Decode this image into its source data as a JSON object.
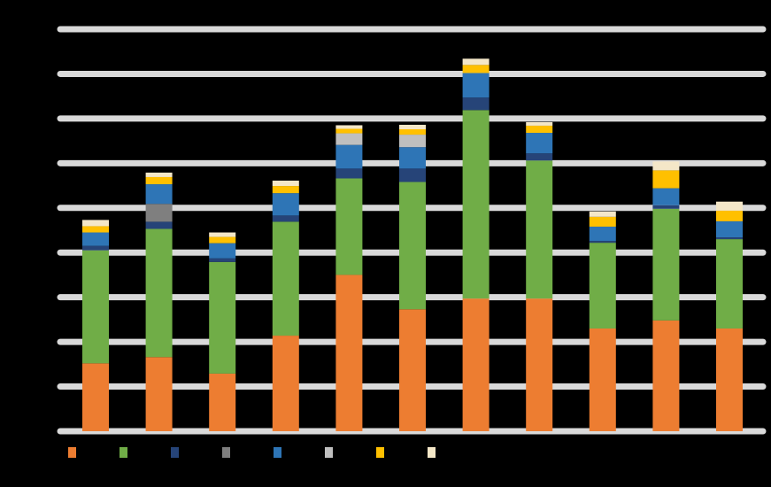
{
  "chart_data": {
    "type": "stacked_bar",
    "ylim": [
      0,
      9
    ],
    "yticks": [
      0,
      1,
      2,
      3,
      4,
      5,
      6,
      7,
      8,
      9
    ],
    "grid": true,
    "series": [
      {
        "color": "#ed7d31",
        "values": [
          1.52,
          1.66,
          1.29,
          2.14,
          3.5,
          2.73,
          2.97,
          2.97,
          2.3,
          2.48,
          2.3
        ]
      },
      {
        "color": "#70ad47",
        "values": [
          2.53,
          2.87,
          2.5,
          2.55,
          2.16,
          2.85,
          4.22,
          3.09,
          1.92,
          2.5,
          2.0
        ]
      },
      {
        "color": "#264478",
        "values": [
          0.1,
          0.16,
          0.08,
          0.14,
          0.22,
          0.3,
          0.28,
          0.16,
          0.04,
          0.08,
          0.04
        ]
      },
      {
        "color": "#7f7f7f",
        "values": [
          0,
          0.4,
          0,
          0,
          0,
          0,
          0,
          0,
          0,
          0,
          0
        ]
      },
      {
        "color": "#2e75b6",
        "values": [
          0.3,
          0.44,
          0.34,
          0.5,
          0.53,
          0.48,
          0.55,
          0.46,
          0.32,
          0.38,
          0.36
        ]
      },
      {
        "color": "#bfbfbf",
        "values": [
          0,
          0,
          0,
          0,
          0.26,
          0.28,
          0,
          0,
          0,
          0,
          0
        ]
      },
      {
        "color": "#ffc000",
        "values": [
          0.14,
          0.16,
          0.14,
          0.16,
          0.1,
          0.12,
          0.18,
          0.16,
          0.22,
          0.4,
          0.24
        ]
      },
      {
        "color": "#f4e7c8",
        "values": [
          0.14,
          0.1,
          0.1,
          0.12,
          0.08,
          0.1,
          0.14,
          0.08,
          0.12,
          0.2,
          0.2
        ]
      }
    ]
  }
}
